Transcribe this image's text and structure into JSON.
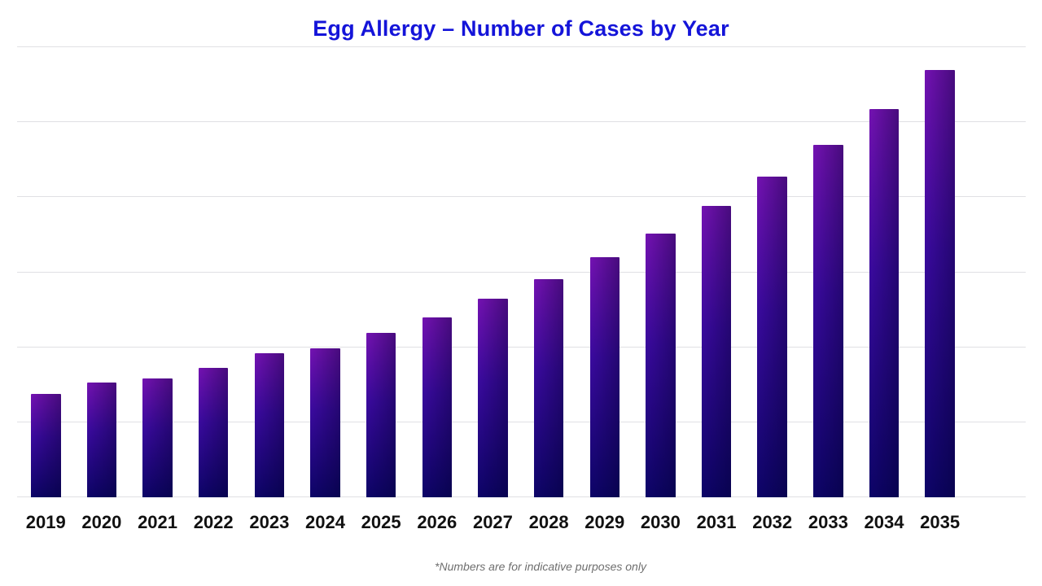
{
  "chart_data": {
    "type": "bar",
    "title": "Egg Allergy – Number of Cases by Year",
    "categories": [
      "2019",
      "2020",
      "2021",
      "2022",
      "2023",
      "2024",
      "2025",
      "2026",
      "2027",
      "2028",
      "2029",
      "2030",
      "2031",
      "2032",
      "2033",
      "2034",
      "2035"
    ],
    "values": [
      138,
      153,
      158,
      173,
      192,
      199,
      219,
      240,
      265,
      291,
      320,
      352,
      388,
      427,
      470,
      518,
      570
    ],
    "xlabel": "",
    "ylabel": "",
    "ylim": [
      0,
      600
    ],
    "gridline_step": 100,
    "grid": true,
    "legend": false,
    "y_tick_labels_visible": false,
    "footnote": "*Numbers are for indicative purposes only",
    "colors": {
      "title": "#1414d9",
      "bar_gradient_top": "#7412b2",
      "bar_gradient_mid": "#3a0a9e",
      "bar_gradient_bottom": "#0d0468",
      "bar_shade_overlay": "rgba(0,0,40,0.38)",
      "gridline": "#e0e0e4",
      "axis_label": "#111111",
      "footnote": "#6e6e6e",
      "background": "#ffffff"
    }
  }
}
